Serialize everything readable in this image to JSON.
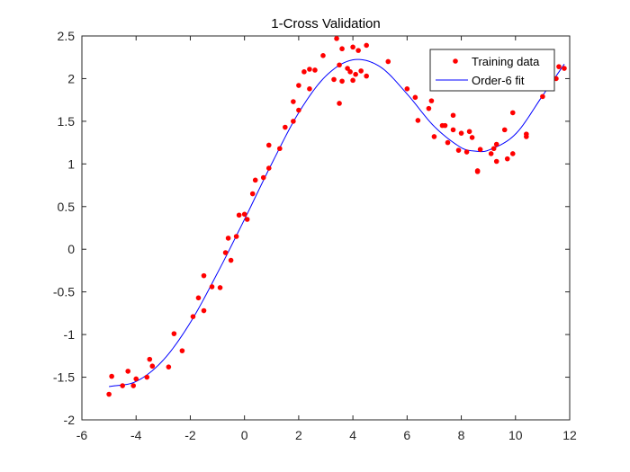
{
  "chart_data": {
    "type": "scatter",
    "title": "1-Cross Validation",
    "xlabel": "",
    "ylabel": "",
    "xlim": [
      -6,
      12
    ],
    "ylim": [
      -2,
      2.5
    ],
    "xticks": [
      -6,
      -4,
      -2,
      0,
      2,
      4,
      6,
      8,
      10,
      12
    ],
    "yticks": [
      -2,
      -1.5,
      -1,
      -0.5,
      0,
      0.5,
      1,
      1.5,
      2,
      2.5
    ],
    "grid": false,
    "legend_position": "top-right",
    "series": [
      {
        "name": "Training data",
        "kind": "scatter",
        "color": "#ff0000",
        "points": [
          [
            -5.0,
            -1.7
          ],
          [
            -4.9,
            -1.49
          ],
          [
            -4.5,
            -1.6
          ],
          [
            -4.3,
            -1.43
          ],
          [
            -4.1,
            -1.6
          ],
          [
            -4.0,
            -1.52
          ],
          [
            -3.6,
            -1.5
          ],
          [
            -3.5,
            -1.29
          ],
          [
            -3.4,
            -1.37
          ],
          [
            -2.8,
            -1.38
          ],
          [
            -2.6,
            -0.99
          ],
          [
            -2.3,
            -1.19
          ],
          [
            -1.9,
            -0.79
          ],
          [
            -1.7,
            -0.57
          ],
          [
            -1.5,
            -0.72
          ],
          [
            -1.5,
            -0.31
          ],
          [
            -1.2,
            -0.44
          ],
          [
            -0.9,
            -0.45
          ],
          [
            -0.7,
            -0.04
          ],
          [
            -0.6,
            0.13
          ],
          [
            -0.5,
            -0.13
          ],
          [
            -0.3,
            0.15
          ],
          [
            -0.2,
            0.4
          ],
          [
            0.0,
            0.41
          ],
          [
            0.1,
            0.35
          ],
          [
            0.3,
            0.65
          ],
          [
            0.4,
            0.81
          ],
          [
            0.7,
            0.84
          ],
          [
            0.9,
            1.22
          ],
          [
            0.9,
            0.95
          ],
          [
            1.3,
            1.18
          ],
          [
            1.5,
            1.43
          ],
          [
            1.8,
            1.5
          ],
          [
            1.8,
            1.73
          ],
          [
            2.0,
            1.92
          ],
          [
            2.0,
            1.63
          ],
          [
            2.2,
            2.08
          ],
          [
            2.4,
            2.11
          ],
          [
            2.4,
            1.88
          ],
          [
            2.6,
            2.1
          ],
          [
            2.9,
            2.27
          ],
          [
            3.3,
            1.99
          ],
          [
            3.4,
            2.47
          ],
          [
            3.5,
            2.16
          ],
          [
            3.5,
            1.71
          ],
          [
            3.6,
            1.97
          ],
          [
            3.6,
            2.35
          ],
          [
            3.8,
            2.12
          ],
          [
            3.9,
            2.08
          ],
          [
            4.0,
            2.37
          ],
          [
            4.0,
            1.98
          ],
          [
            4.1,
            2.05
          ],
          [
            4.2,
            2.33
          ],
          [
            4.3,
            2.09
          ],
          [
            4.5,
            2.39
          ],
          [
            4.5,
            2.03
          ],
          [
            5.3,
            2.2
          ],
          [
            6.0,
            1.88
          ],
          [
            6.3,
            1.78
          ],
          [
            6.4,
            1.51
          ],
          [
            6.8,
            1.65
          ],
          [
            6.9,
            1.74
          ],
          [
            7.0,
            1.32
          ],
          [
            7.3,
            1.45
          ],
          [
            7.4,
            1.45
          ],
          [
            7.5,
            1.25
          ],
          [
            7.7,
            1.4
          ],
          [
            7.7,
            1.57
          ],
          [
            7.9,
            1.16
          ],
          [
            8.0,
            1.36
          ],
          [
            8.2,
            1.14
          ],
          [
            8.3,
            1.38
          ],
          [
            8.4,
            1.31
          ],
          [
            8.6,
            0.92
          ],
          [
            8.6,
            0.91
          ],
          [
            8.7,
            1.17
          ],
          [
            9.1,
            1.12
          ],
          [
            9.2,
            1.18
          ],
          [
            9.3,
            1.23
          ],
          [
            9.3,
            1.03
          ],
          [
            9.6,
            1.4
          ],
          [
            9.7,
            1.06
          ],
          [
            9.9,
            1.12
          ],
          [
            9.9,
            1.6
          ],
          [
            10.4,
            1.32
          ],
          [
            10.4,
            1.35
          ],
          [
            11.0,
            1.79
          ],
          [
            11.5,
            2.0
          ],
          [
            11.6,
            2.14
          ],
          [
            11.8,
            2.12
          ]
        ]
      },
      {
        "name": "Order-6 fit",
        "kind": "line",
        "color": "#0000ff",
        "x_range": [
          -5,
          11.8
        ]
      }
    ]
  }
}
